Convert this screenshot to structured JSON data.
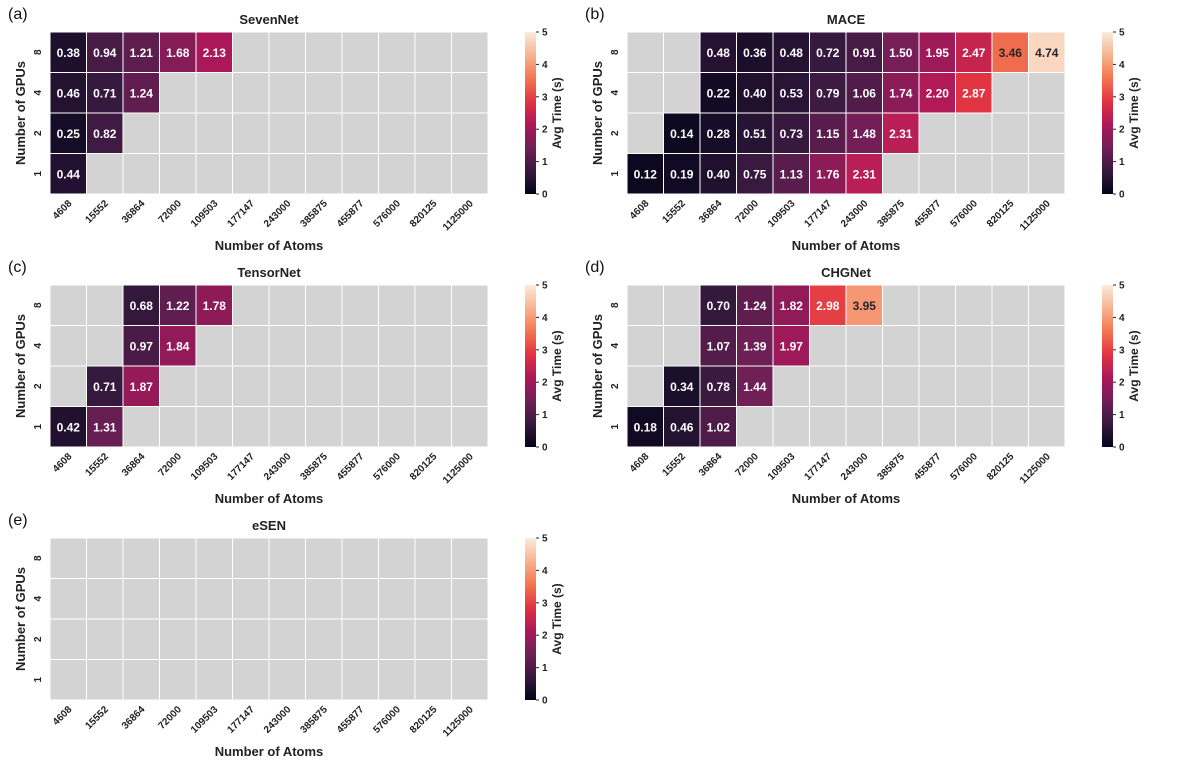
{
  "chart_data": [
    {
      "type": "heatmap",
      "panel_label": "(a)",
      "title": "SevenNet",
      "xlabel": "Number of Atoms",
      "ylabel": "Number of GPUs",
      "colorbar_label": "Avg Time (s)",
      "colorbar_ticks": [
        "0",
        "1",
        "2",
        "3",
        "4",
        "5"
      ],
      "vmin": 0,
      "vmax": 5,
      "x_categories": [
        "4608",
        "15552",
        "36864",
        "72000",
        "109503",
        "177147",
        "243000",
        "385875",
        "455877",
        "576000",
        "820125",
        "1125000"
      ],
      "y_categories": [
        "8",
        "4",
        "2",
        "1"
      ],
      "values": [
        [
          0.38,
          0.94,
          1.21,
          1.68,
          2.13,
          null,
          null,
          null,
          null,
          null,
          null,
          null
        ],
        [
          0.46,
          0.71,
          1.24,
          null,
          null,
          null,
          null,
          null,
          null,
          null,
          null,
          null
        ],
        [
          0.25,
          0.82,
          null,
          null,
          null,
          null,
          null,
          null,
          null,
          null,
          null,
          null
        ],
        [
          0.44,
          null,
          null,
          null,
          null,
          null,
          null,
          null,
          null,
          null,
          null,
          null
        ]
      ]
    },
    {
      "type": "heatmap",
      "panel_label": "(b)",
      "title": "MACE",
      "xlabel": "Number of Atoms",
      "ylabel": "Number of GPUs",
      "colorbar_label": "Avg Time (s)",
      "colorbar_ticks": [
        "0",
        "1",
        "2",
        "3",
        "4",
        "5"
      ],
      "vmin": 0,
      "vmax": 5,
      "x_categories": [
        "4608",
        "15552",
        "36864",
        "72000",
        "109503",
        "177147",
        "243000",
        "385875",
        "455877",
        "576000",
        "820125",
        "1125000"
      ],
      "y_categories": [
        "8",
        "4",
        "2",
        "1"
      ],
      "values": [
        [
          null,
          null,
          0.48,
          0.36,
          0.48,
          0.72,
          0.91,
          1.5,
          1.95,
          2.47,
          3.46,
          4.74
        ],
        [
          null,
          null,
          0.22,
          0.4,
          0.53,
          0.79,
          1.06,
          1.74,
          2.2,
          2.87,
          null,
          null
        ],
        [
          null,
          0.14,
          0.28,
          0.51,
          0.73,
          1.15,
          1.48,
          2.31,
          null,
          null,
          null,
          null
        ],
        [
          0.12,
          0.19,
          0.4,
          0.75,
          1.13,
          1.76,
          2.31,
          null,
          null,
          null,
          null,
          null
        ]
      ]
    },
    {
      "type": "heatmap",
      "panel_label": "(c)",
      "title": "TensorNet",
      "xlabel": "Number of Atoms",
      "ylabel": "Number of GPUs",
      "colorbar_label": "Avg Time (s)",
      "colorbar_ticks": [
        "0",
        "1",
        "2",
        "3",
        "4",
        "5"
      ],
      "vmin": 0,
      "vmax": 5,
      "x_categories": [
        "4608",
        "15552",
        "36864",
        "72000",
        "109503",
        "177147",
        "243000",
        "385875",
        "455877",
        "576000",
        "820125",
        "1125000"
      ],
      "y_categories": [
        "8",
        "4",
        "2",
        "1"
      ],
      "values": [
        [
          null,
          null,
          0.68,
          1.22,
          1.78,
          null,
          null,
          null,
          null,
          null,
          null,
          null
        ],
        [
          null,
          null,
          0.97,
          1.84,
          null,
          null,
          null,
          null,
          null,
          null,
          null,
          null
        ],
        [
          null,
          0.71,
          1.87,
          null,
          null,
          null,
          null,
          null,
          null,
          null,
          null,
          null
        ],
        [
          0.42,
          1.31,
          null,
          null,
          null,
          null,
          null,
          null,
          null,
          null,
          null,
          null
        ]
      ]
    },
    {
      "type": "heatmap",
      "panel_label": "(d)",
      "title": "CHGNet",
      "xlabel": "Number of Atoms",
      "ylabel": "Number of GPUs",
      "colorbar_label": "Avg Time (s)",
      "colorbar_ticks": [
        "0",
        "1",
        "2",
        "3",
        "4",
        "5"
      ],
      "vmin": 0,
      "vmax": 5,
      "x_categories": [
        "4608",
        "15552",
        "36864",
        "72000",
        "109503",
        "177147",
        "243000",
        "385875",
        "455877",
        "576000",
        "820125",
        "1125000"
      ],
      "y_categories": [
        "8",
        "4",
        "2",
        "1"
      ],
      "values": [
        [
          null,
          null,
          0.7,
          1.24,
          1.82,
          2.98,
          3.95,
          null,
          null,
          null,
          null,
          null
        ],
        [
          null,
          null,
          1.07,
          1.39,
          1.97,
          null,
          null,
          null,
          null,
          null,
          null,
          null
        ],
        [
          null,
          0.34,
          0.78,
          1.44,
          null,
          null,
          null,
          null,
          null,
          null,
          null,
          null
        ],
        [
          0.18,
          0.46,
          1.02,
          null,
          null,
          null,
          null,
          null,
          null,
          null,
          null,
          null
        ]
      ]
    },
    {
      "type": "heatmap",
      "panel_label": "(e)",
      "title": "eSEN",
      "xlabel": "Number of Atoms",
      "ylabel": "Number of GPUs",
      "colorbar_label": "Avg Time (s)",
      "colorbar_ticks": [
        "0",
        "1",
        "2",
        "3",
        "4",
        "5"
      ],
      "vmin": 0,
      "vmax": 5,
      "x_categories": [
        "4608",
        "15552",
        "36864",
        "72000",
        "109503",
        "177147",
        "243000",
        "385875",
        "455877",
        "576000",
        "820125",
        "1125000"
      ],
      "y_categories": [
        "8",
        "4",
        "2",
        "1"
      ],
      "values": [
        [
          null,
          null,
          null,
          null,
          null,
          null,
          null,
          null,
          null,
          null,
          null,
          null
        ],
        [
          null,
          null,
          null,
          null,
          null,
          null,
          null,
          null,
          null,
          null,
          null,
          null
        ],
        [
          null,
          null,
          null,
          null,
          null,
          null,
          null,
          null,
          null,
          null,
          null,
          null
        ],
        [
          null,
          null,
          null,
          null,
          null,
          null,
          null,
          null,
          null,
          null,
          null,
          null
        ]
      ]
    }
  ],
  "colors": {
    "missing_cell": "#d3d3d3",
    "cell_border": "#ffffff",
    "colormap": [
      "#03051a",
      "#36193e",
      "#701f57",
      "#ad1759",
      "#e13342",
      "#f37651",
      "#f6b48f",
      "#faebdd"
    ]
  }
}
